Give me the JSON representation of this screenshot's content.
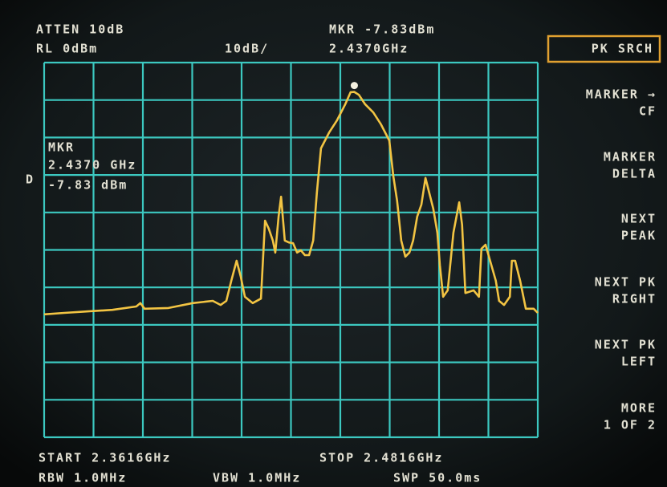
{
  "header": {
    "atten": "ATTEN 10dB",
    "ref_level": "RL 0dBm",
    "scale": "10dB/",
    "marker_amplitude": "MKR -7.83dBm",
    "marker_frequency": "2.4370GHz"
  },
  "marker_readout": [
    "MKR",
    "2.4370 GHz",
    "-7.83 dBm"
  ],
  "trace_label": "D",
  "softkeys": [
    [
      "PK SRCH"
    ],
    [
      "MARKER →",
      "CF"
    ],
    [
      "MARKER",
      "DELTA"
    ],
    [
      "NEXT",
      "PEAK"
    ],
    [
      "NEXT PK",
      "RIGHT"
    ],
    [
      "NEXT PK",
      "LEFT"
    ],
    [
      "MORE",
      "1 OF 2"
    ]
  ],
  "footer": {
    "start": "START 2.3616GHz",
    "stop": "STOP 2.4816GHz",
    "rbw": "RBW 1.0MHz",
    "vbw": "VBW 1.0MHz",
    "sweep": "SWP 50.0ms"
  },
  "chart_data": {
    "type": "line",
    "x": [
      2.3616,
      2.3665,
      2.3723,
      2.3782,
      2.384,
      2.385,
      2.386,
      2.3918,
      2.3977,
      2.4026,
      2.4045,
      2.4059,
      2.4071,
      2.4084,
      2.4094,
      2.4104,
      2.4123,
      2.4143,
      2.4153,
      2.4162,
      2.4172,
      2.4178,
      2.4186,
      2.4192,
      2.4201,
      2.4211,
      2.4221,
      2.4231,
      2.424,
      2.425,
      2.426,
      2.427,
      2.4279,
      2.4289,
      2.4309,
      2.4328,
      2.4348,
      2.4361,
      2.437,
      2.4381,
      2.4396,
      2.4416,
      2.4435,
      2.4455,
      2.4465,
      2.4474,
      2.4484,
      2.4494,
      2.4504,
      2.4513,
      2.4523,
      2.4533,
      2.4543,
      2.4552,
      2.4562,
      2.4572,
      2.4578,
      2.4586,
      2.4597,
      2.4611,
      2.4625,
      2.4632,
      2.464,
      2.466,
      2.4673,
      2.4679,
      2.4689,
      2.4703,
      2.4714,
      2.4722,
      2.4734,
      2.4748,
      2.4753,
      2.4761,
      2.4773,
      2.4787,
      2.4806,
      2.4816
    ],
    "series": [
      {
        "color": "#f2c443",
        "values": [
          -67.2,
          -66.8,
          -66.4,
          -66.0,
          -65.1,
          -64.2,
          -65.7,
          -65.5,
          -64.2,
          -63.6,
          -64.7,
          -63.6,
          -58.2,
          -52.9,
          -57.2,
          -62.5,
          -64.2,
          -63.0,
          -42.2,
          -44.3,
          -47.5,
          -50.7,
          -41.1,
          -35.8,
          -47.5,
          -48.0,
          -48.2,
          -50.7,
          -50.1,
          -51.4,
          -51.4,
          -47.5,
          -34.7,
          -22.9,
          -18.6,
          -15.4,
          -11.1,
          -7.9,
          -7.83,
          -8.6,
          -11.1,
          -13.3,
          -16.5,
          -20.8,
          -30.4,
          -36.8,
          -47.5,
          -51.8,
          -50.7,
          -47.5,
          -41.1,
          -37.9,
          -30.8,
          -34.7,
          -39.0,
          -45.4,
          -54.0,
          -62.5,
          -60.8,
          -45.4,
          -37.3,
          -43.3,
          -61.5,
          -60.8,
          -62.5,
          -49.7,
          -48.6,
          -54.0,
          -58.2,
          -63.6,
          -64.7,
          -62.5,
          -52.9,
          -52.9,
          -58.2,
          -65.7,
          -65.7,
          -66.8
        ]
      }
    ],
    "xlim": [
      2.3616,
      2.4816
    ],
    "ylim": [
      -100,
      0
    ],
    "marker": {
      "x": 2.437,
      "y": -7.83
    }
  }
}
